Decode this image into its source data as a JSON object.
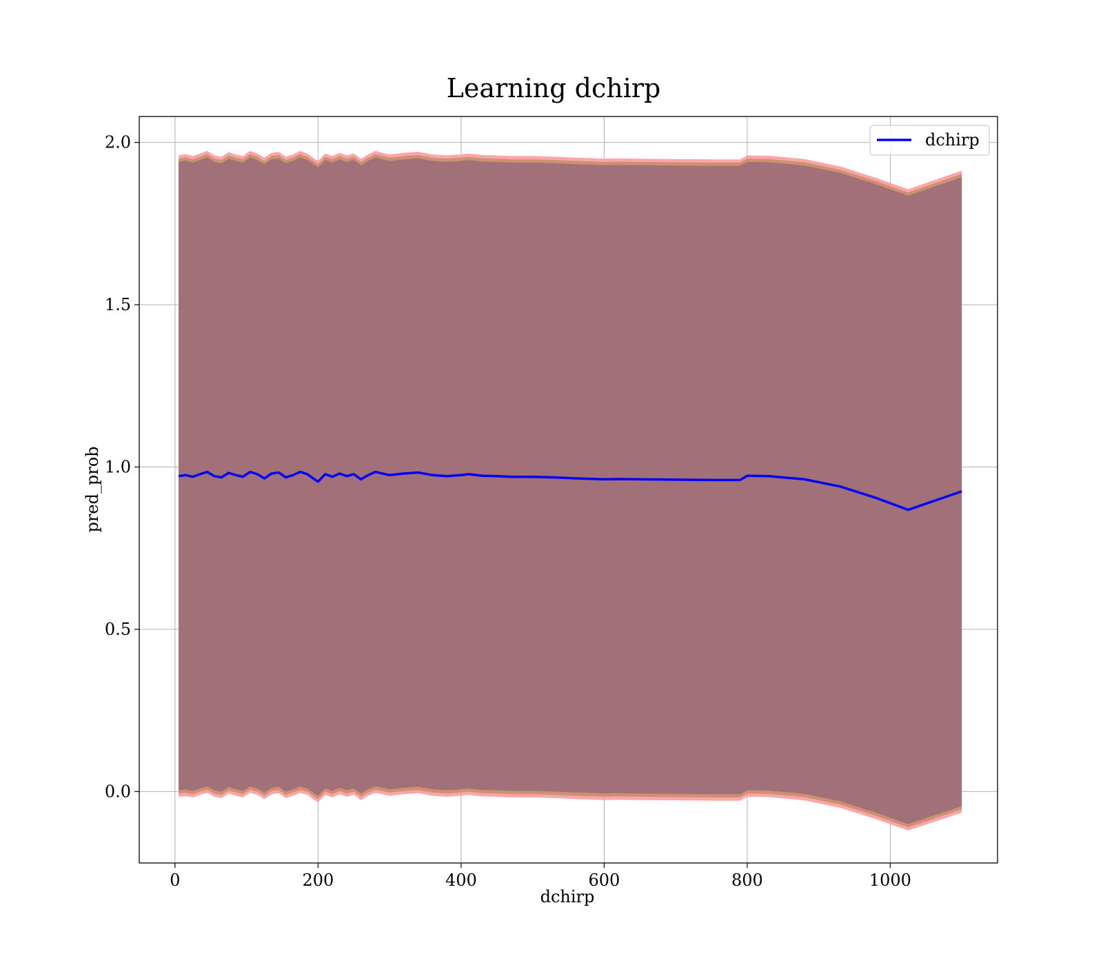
{
  "chart_data": {
    "type": "line",
    "title": "Learning dchirp",
    "xlabel": "dchirp",
    "ylabel": "pred_prob",
    "xlim": [
      -50,
      1150
    ],
    "ylim": [
      -0.22,
      2.08
    ],
    "xticks": [
      0,
      200,
      400,
      600,
      800,
      1000
    ],
    "xtick_labels": [
      "0",
      "200",
      "400",
      "600",
      "800",
      "1000"
    ],
    "yticks": [
      0.0,
      0.5,
      1.0,
      1.5,
      2.0
    ],
    "ytick_labels": [
      "0.0",
      "0.5",
      "1.0",
      "1.5",
      "2.0"
    ],
    "grid": true,
    "legend": {
      "position": "top-right",
      "entries": [
        "dchirp"
      ]
    },
    "colors": {
      "line": "#0000ff",
      "band_outer": "#ff9aa0",
      "band_mid": "#c9906a",
      "band_inner": "#a17078"
    },
    "series": [
      {
        "name": "dchirp",
        "x": [
          5,
          15,
          25,
          35,
          45,
          55,
          65,
          75,
          85,
          95,
          105,
          115,
          125,
          135,
          145,
          155,
          165,
          175,
          185,
          195,
          200,
          210,
          220,
          230,
          240,
          250,
          260,
          270,
          280,
          290,
          300,
          320,
          340,
          360,
          380,
          400,
          410,
          430,
          450,
          470,
          500,
          530,
          560,
          590,
          600,
          620,
          650,
          700,
          750,
          790,
          800,
          830,
          880,
          930,
          980,
          1025,
          1100
        ],
        "y": [
          0.972,
          0.975,
          0.97,
          0.978,
          0.985,
          0.972,
          0.968,
          0.982,
          0.975,
          0.97,
          0.985,
          0.978,
          0.965,
          0.98,
          0.983,
          0.968,
          0.975,
          0.985,
          0.978,
          0.962,
          0.955,
          0.978,
          0.97,
          0.98,
          0.972,
          0.978,
          0.962,
          0.975,
          0.985,
          0.98,
          0.975,
          0.98,
          0.983,
          0.975,
          0.972,
          0.975,
          0.978,
          0.973,
          0.972,
          0.97,
          0.97,
          0.968,
          0.965,
          0.963,
          0.962,
          0.963,
          0.962,
          0.961,
          0.96,
          0.96,
          0.973,
          0.972,
          0.962,
          0.94,
          0.905,
          0.868,
          0.925
        ],
        "lower": [
          0.004,
          0.006,
          0.002,
          0.01,
          0.016,
          0.004,
          0.0,
          0.014,
          0.007,
          0.002,
          0.016,
          0.01,
          -0.003,
          0.012,
          0.015,
          0.0,
          0.007,
          0.016,
          0.01,
          -0.006,
          -0.013,
          0.01,
          0.002,
          0.012,
          0.004,
          0.01,
          -0.006,
          0.007,
          0.016,
          0.012,
          0.007,
          0.012,
          0.015,
          0.007,
          0.004,
          0.007,
          0.01,
          0.005,
          0.004,
          0.002,
          0.002,
          0.0,
          -0.003,
          -0.005,
          -0.006,
          -0.005,
          -0.006,
          -0.007,
          -0.008,
          -0.008,
          0.004,
          0.003,
          -0.007,
          -0.03,
          -0.065,
          -0.1,
          -0.045
        ],
        "upper": [
          1.94,
          1.944,
          1.938,
          1.946,
          1.954,
          1.94,
          1.936,
          1.95,
          1.943,
          1.938,
          1.954,
          1.946,
          1.933,
          1.948,
          1.951,
          1.936,
          1.943,
          1.954,
          1.946,
          1.93,
          1.923,
          1.946,
          1.938,
          1.948,
          1.94,
          1.946,
          1.93,
          1.943,
          1.954,
          1.948,
          1.943,
          1.948,
          1.951,
          1.943,
          1.94,
          1.943,
          1.946,
          1.941,
          1.94,
          1.938,
          1.938,
          1.936,
          1.933,
          1.931,
          1.93,
          1.931,
          1.93,
          1.929,
          1.928,
          1.928,
          1.94,
          1.939,
          1.929,
          1.906,
          1.871,
          1.836,
          1.893
        ]
      }
    ]
  }
}
